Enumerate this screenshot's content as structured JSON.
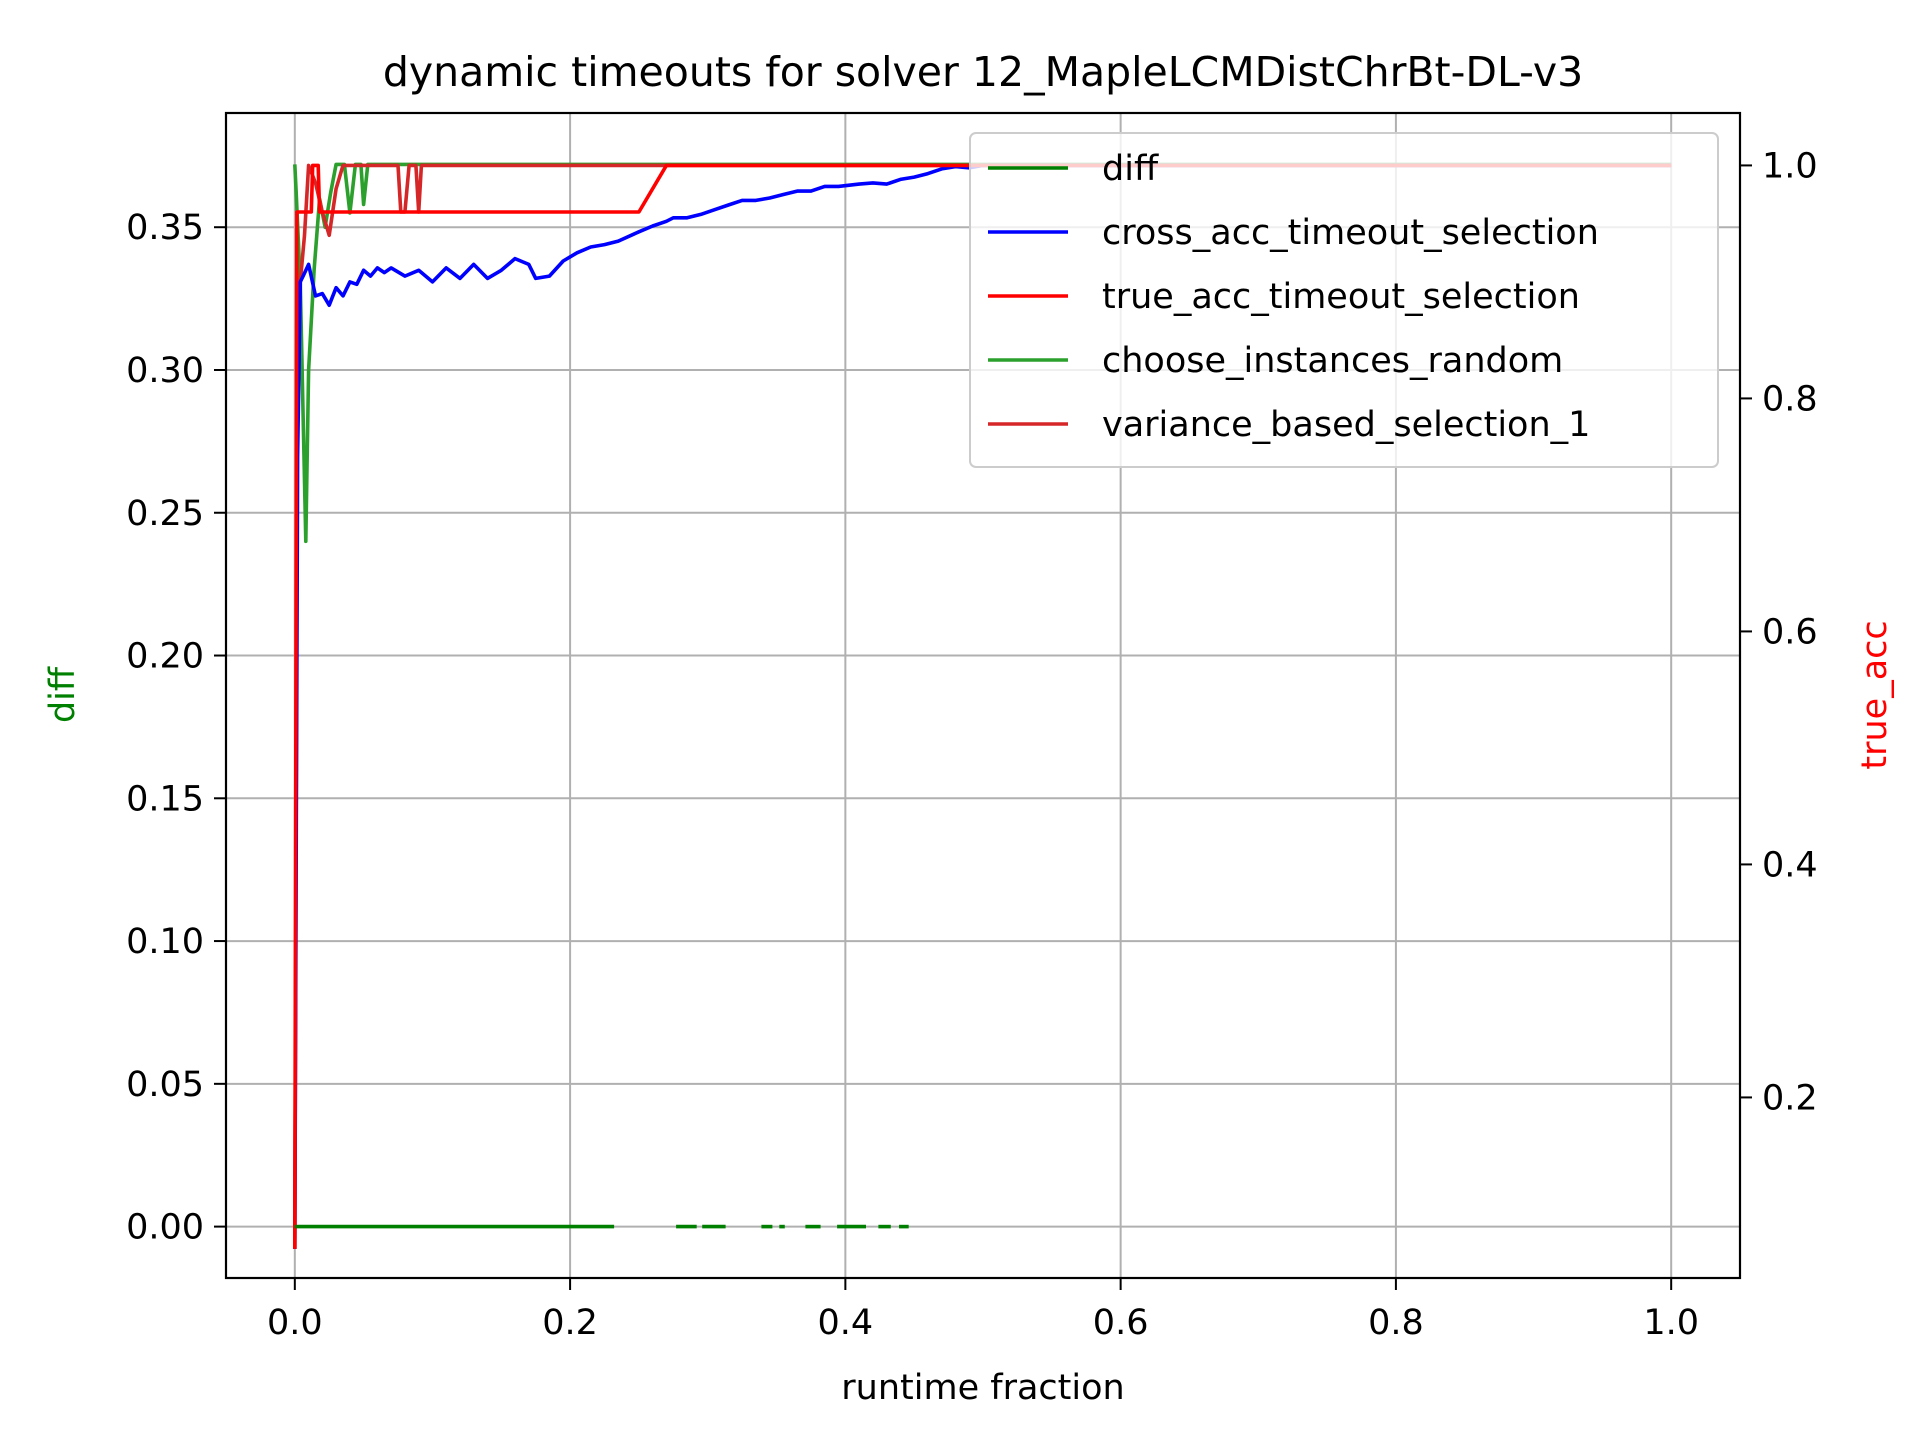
{
  "chart_data": {
    "type": "line",
    "title": "dynamic timeouts for solver 12_MapleLCMDistChrBt-DL-v3",
    "xlabel": "runtime fraction",
    "ylabel_left": "diff",
    "ylabel_right": "true_acc",
    "ylabel_left_color": "#008000",
    "ylabel_right_color": "#ff0000",
    "xlim": [
      -0.05,
      1.05
    ],
    "ylim_left": [
      -0.018,
      0.39
    ],
    "ylim_right": [
      0.045,
      1.045
    ],
    "x_ticks": [
      "0.0",
      "0.2",
      "0.4",
      "0.6",
      "0.8",
      "1.0"
    ],
    "y_ticks_left": [
      "0.00",
      "0.05",
      "0.10",
      "0.15",
      "0.20",
      "0.25",
      "0.30",
      "0.35"
    ],
    "y_ticks_right": [
      "0.2",
      "0.4",
      "0.6",
      "0.8",
      "1.0"
    ],
    "grid": true,
    "legend_position": "top-right",
    "series": [
      {
        "name": "diff",
        "color": "#008000",
        "axis": "left",
        "segments": [
          [
            [
              0.0,
              0.0
            ],
            [
              0.232,
              0.0
            ]
          ],
          [
            [
              0.277,
              0.0
            ],
            [
              0.292,
              0.0
            ]
          ],
          [
            [
              0.296,
              0.0
            ],
            [
              0.313,
              0.0
            ]
          ],
          [
            [
              0.339,
              0.0
            ],
            [
              0.347,
              0.0
            ]
          ],
          [
            [
              0.352,
              0.0
            ],
            [
              0.356,
              0.0
            ]
          ],
          [
            [
              0.371,
              0.0
            ],
            [
              0.382,
              0.0
            ]
          ],
          [
            [
              0.394,
              0.0
            ],
            [
              0.415,
              0.0
            ]
          ],
          [
            [
              0.424,
              0.0
            ],
            [
              0.433,
              0.0
            ]
          ],
          [
            [
              0.439,
              0.0
            ],
            [
              0.446,
              0.0
            ]
          ]
        ]
      },
      {
        "name": "cross_acc_timeout_selection",
        "color": "#0000ff",
        "axis": "right",
        "points": [
          [
            0.0,
            0.07
          ],
          [
            0.002,
            0.75
          ],
          [
            0.004,
            0.9
          ],
          [
            0.006,
            0.905
          ],
          [
            0.01,
            0.915
          ],
          [
            0.015,
            0.888
          ],
          [
            0.02,
            0.89
          ],
          [
            0.025,
            0.88
          ],
          [
            0.03,
            0.895
          ],
          [
            0.035,
            0.888
          ],
          [
            0.04,
            0.9
          ],
          [
            0.045,
            0.898
          ],
          [
            0.05,
            0.91
          ],
          [
            0.055,
            0.905
          ],
          [
            0.06,
            0.912
          ],
          [
            0.065,
            0.908
          ],
          [
            0.07,
            0.912
          ],
          [
            0.08,
            0.905
          ],
          [
            0.09,
            0.91
          ],
          [
            0.1,
            0.9
          ],
          [
            0.11,
            0.912
          ],
          [
            0.12,
            0.903
          ],
          [
            0.13,
            0.915
          ],
          [
            0.14,
            0.903
          ],
          [
            0.15,
            0.91
          ],
          [
            0.16,
            0.92
          ],
          [
            0.17,
            0.915
          ],
          [
            0.175,
            0.903
          ],
          [
            0.185,
            0.905
          ],
          [
            0.195,
            0.918
          ],
          [
            0.205,
            0.925
          ],
          [
            0.215,
            0.93
          ],
          [
            0.225,
            0.932
          ],
          [
            0.235,
            0.935
          ],
          [
            0.25,
            0.943
          ],
          [
            0.26,
            0.948
          ],
          [
            0.27,
            0.952
          ],
          [
            0.275,
            0.955
          ],
          [
            0.285,
            0.955
          ],
          [
            0.295,
            0.958
          ],
          [
            0.305,
            0.962
          ],
          [
            0.315,
            0.966
          ],
          [
            0.325,
            0.97
          ],
          [
            0.335,
            0.97
          ],
          [
            0.345,
            0.972
          ],
          [
            0.355,
            0.975
          ],
          [
            0.365,
            0.978
          ],
          [
            0.375,
            0.978
          ],
          [
            0.385,
            0.982
          ],
          [
            0.395,
            0.982
          ],
          [
            0.41,
            0.984
          ],
          [
            0.42,
            0.985
          ],
          [
            0.43,
            0.984
          ],
          [
            0.44,
            0.988
          ],
          [
            0.45,
            0.99
          ],
          [
            0.46,
            0.993
          ],
          [
            0.47,
            0.997
          ],
          [
            0.48,
            0.999
          ],
          [
            0.49,
            0.998
          ],
          [
            0.5,
            1.0
          ],
          [
            0.6,
            1.0
          ],
          [
            0.8,
            1.0
          ],
          [
            1.0,
            1.0
          ]
        ]
      },
      {
        "name": "true_acc_timeout_selection",
        "color": "#ff0000",
        "axis": "right",
        "points": [
          [
            0.0,
            0.07
          ],
          [
            0.0015,
            0.96
          ],
          [
            0.012,
            0.96
          ],
          [
            0.013,
            1.0
          ],
          [
            0.017,
            1.0
          ],
          [
            0.018,
            0.96
          ],
          [
            0.25,
            0.96
          ],
          [
            0.27,
            1.0
          ],
          [
            1.0,
            1.0
          ]
        ]
      },
      {
        "name": "choose_instances_random",
        "color": "#2ca02c",
        "axis": "left",
        "points": [
          [
            0.0,
            0.372
          ],
          [
            0.001,
            0.362
          ],
          [
            0.004,
            0.33
          ],
          [
            0.008,
            0.24
          ],
          [
            0.01,
            0.3
          ],
          [
            0.014,
            0.335
          ],
          [
            0.018,
            0.36
          ],
          [
            0.022,
            0.35
          ],
          [
            0.026,
            0.362
          ],
          [
            0.03,
            0.372
          ],
          [
            0.036,
            0.372
          ],
          [
            0.04,
            0.355
          ],
          [
            0.044,
            0.372
          ],
          [
            0.048,
            0.372
          ],
          [
            0.05,
            0.358
          ],
          [
            0.053,
            0.372
          ],
          [
            1.0,
            0.372
          ]
        ]
      },
      {
        "name": "variance_based_selection_1",
        "color": "#d62728",
        "axis": "right",
        "points": [
          [
            0.0,
            0.07
          ],
          [
            0.002,
            0.85
          ],
          [
            0.004,
            0.9
          ],
          [
            0.007,
            0.94
          ],
          [
            0.01,
            1.0
          ],
          [
            0.015,
            0.985
          ],
          [
            0.02,
            0.96
          ],
          [
            0.025,
            0.94
          ],
          [
            0.03,
            0.98
          ],
          [
            0.035,
            1.0
          ],
          [
            0.075,
            1.0
          ],
          [
            0.077,
            0.96
          ],
          [
            0.08,
            0.96
          ],
          [
            0.083,
            1.0
          ],
          [
            0.088,
            1.0
          ],
          [
            0.09,
            0.96
          ],
          [
            0.092,
            1.0
          ],
          [
            1.0,
            1.0
          ]
        ]
      }
    ]
  }
}
